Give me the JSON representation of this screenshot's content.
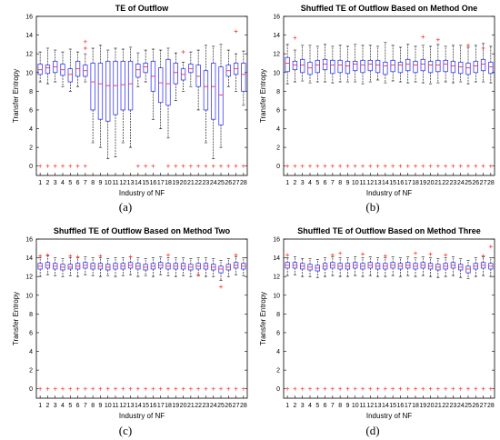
{
  "colors": {
    "box": "#3b3bff",
    "median": "#ff3030",
    "outlier": "#ff3030",
    "whisker": "#000000",
    "axis": "#000000"
  },
  "chart_data": [
    {
      "type": "boxplot",
      "title": "TE of Outflow",
      "xlabel": "Industry of NF",
      "ylabel": "Transfer Entropy",
      "ylim": [
        -1,
        16
      ],
      "yticks": [
        0,
        2,
        4,
        6,
        8,
        10,
        12,
        14,
        16
      ],
      "categories": [
        "1",
        "2",
        "3",
        "4",
        "5",
        "6",
        "7",
        "8",
        "9",
        "10",
        "11",
        "12",
        "13",
        "14",
        "15",
        "16",
        "17",
        "18",
        "19",
        "20",
        "21",
        "22",
        "23",
        "24",
        "25",
        "26",
        "27",
        "28"
      ],
      "q1": [
        9.8,
        9.9,
        10.0,
        9.7,
        9.0,
        9.6,
        9.6,
        6.0,
        5.0,
        4.8,
        5.5,
        6.0,
        6.0,
        9.5,
        10.0,
        8.0,
        6.8,
        6.5,
        8.8,
        9.2,
        10.0,
        8.5,
        6.0,
        5.0,
        4.4,
        9.6,
        9.8,
        8.0
      ],
      "median": [
        10.3,
        10.5,
        10.6,
        10.3,
        9.8,
        10.4,
        10.2,
        9.0,
        8.8,
        8.6,
        8.6,
        8.7,
        8.8,
        10.3,
        10.6,
        9.6,
        8.9,
        8.8,
        10.0,
        9.8,
        10.4,
        9.6,
        8.5,
        8.5,
        7.6,
        10.2,
        10.4,
        9.8
      ],
      "q3": [
        10.9,
        10.8,
        11.2,
        10.9,
        10.4,
        11.2,
        10.8,
        11.0,
        11.0,
        11.2,
        11.2,
        11.2,
        11.2,
        10.9,
        11.0,
        11.2,
        10.5,
        11.4,
        11.0,
        10.4,
        10.9,
        10.8,
        10.2,
        11.0,
        10.6,
        10.8,
        11.0,
        11.0
      ],
      "whisker_low": [
        9.0,
        8.8,
        9.0,
        8.5,
        8.0,
        8.5,
        9.0,
        2.5,
        2.0,
        0.8,
        1.0,
        2.5,
        2.0,
        8.5,
        9.0,
        5.0,
        4.0,
        3.0,
        7.0,
        8.0,
        8.5,
        6.0,
        2.5,
        0.8,
        2.0,
        8.5,
        8.0,
        6.5
      ],
      "whisker_high": [
        12.2,
        12.6,
        12.4,
        12.2,
        12.5,
        12.2,
        12.0,
        12.6,
        12.9,
        12.4,
        12.6,
        12.5,
        12.7,
        12.1,
        12.4,
        12.5,
        12.4,
        12.6,
        12.1,
        11.1,
        12.2,
        12.4,
        12.9,
        12.8,
        13.0,
        12.4,
        12.0,
        12.3
      ],
      "outliers": [
        [
          1,
          0
        ],
        [
          2,
          0
        ],
        [
          3,
          0
        ],
        [
          4,
          0
        ],
        [
          5,
          0
        ],
        [
          6,
          0
        ],
        [
          7,
          0
        ],
        [
          7,
          13.3
        ],
        [
          7,
          12.6
        ],
        [
          14,
          0
        ],
        [
          15,
          0
        ],
        [
          16,
          0
        ],
        [
          18,
          0
        ],
        [
          19,
          0
        ],
        [
          20,
          0
        ],
        [
          20,
          12.2
        ],
        [
          21,
          0
        ],
        [
          22,
          0
        ],
        [
          23,
          0
        ],
        [
          24,
          0
        ],
        [
          25,
          0
        ],
        [
          26,
          0
        ],
        [
          27,
          0
        ],
        [
          27,
          14.4
        ],
        [
          28,
          0
        ]
      ]
    },
    {
      "type": "boxplot",
      "title": "Shuffled TE of Outflow Based on Method One",
      "xlabel": "Industry of NF",
      "ylabel": "Transfer Entropy",
      "ylim": [
        -1,
        16
      ],
      "yticks": [
        0,
        2,
        4,
        6,
        8,
        10,
        12,
        14,
        16
      ],
      "categories": [
        "1",
        "2",
        "3",
        "4",
        "5",
        "6",
        "7",
        "8",
        "9",
        "10",
        "11",
        "12",
        "13",
        "14",
        "15",
        "16",
        "17",
        "18",
        "19",
        "20",
        "21",
        "22",
        "23",
        "24",
        "25",
        "26",
        "27",
        "28"
      ],
      "q1": [
        10.1,
        10.3,
        10.0,
        9.8,
        10.0,
        10.3,
        9.9,
        10.0,
        9.9,
        10.2,
        10.0,
        10.2,
        10.0,
        9.8,
        10.1,
        10.0,
        10.2,
        10.0,
        10.2,
        10.0,
        10.1,
        10.1,
        10.0,
        9.9,
        9.8,
        10.0,
        10.2,
        9.9
      ],
      "median": [
        11.0,
        10.8,
        10.8,
        10.5,
        10.8,
        10.9,
        10.8,
        10.8,
        10.7,
        10.9,
        10.8,
        10.9,
        10.8,
        10.7,
        10.8,
        10.8,
        10.9,
        10.8,
        10.9,
        10.8,
        10.8,
        10.9,
        10.7,
        10.6,
        10.5,
        10.7,
        10.9,
        10.6
      ],
      "q3": [
        11.6,
        11.2,
        11.4,
        11.1,
        11.3,
        11.4,
        11.3,
        11.3,
        11.2,
        11.2,
        11.3,
        11.3,
        11.3,
        11.1,
        11.3,
        11.1,
        11.4,
        11.2,
        11.4,
        11.2,
        11.3,
        11.3,
        11.2,
        11.1,
        11.0,
        11.2,
        11.4,
        11.1
      ],
      "whisker_low": [
        8.8,
        9.0,
        9.1,
        8.9,
        9.0,
        9.0,
        8.9,
        9.0,
        9.0,
        9.0,
        8.8,
        9.0,
        9.2,
        8.9,
        9.1,
        9.0,
        8.9,
        9.0,
        8.9,
        8.8,
        8.9,
        9.0,
        8.9,
        9.0,
        8.8,
        9.0,
        9.0,
        8.9
      ],
      "whisker_high": [
        13.0,
        12.4,
        12.9,
        12.9,
        12.8,
        13.0,
        12.8,
        12.9,
        12.8,
        13.0,
        12.9,
        12.9,
        12.8,
        13.2,
        12.9,
        12.7,
        13.0,
        12.8,
        12.9,
        12.8,
        13.0,
        12.8,
        12.9,
        12.9,
        12.7,
        12.9,
        13.1,
        12.8
      ],
      "outliers": [
        [
          1,
          0
        ],
        [
          2,
          0
        ],
        [
          2,
          13.7
        ],
        [
          3,
          0
        ],
        [
          4,
          0
        ],
        [
          5,
          0
        ],
        [
          6,
          0
        ],
        [
          7,
          0
        ],
        [
          8,
          0
        ],
        [
          9,
          0
        ],
        [
          10,
          0
        ],
        [
          11,
          0
        ],
        [
          12,
          0
        ],
        [
          13,
          0
        ],
        [
          14,
          0
        ],
        [
          15,
          0
        ],
        [
          16,
          0
        ],
        [
          17,
          0
        ],
        [
          18,
          0
        ],
        [
          19,
          0
        ],
        [
          19,
          13.8
        ],
        [
          20,
          0
        ],
        [
          21,
          0
        ],
        [
          21,
          13.5
        ],
        [
          22,
          0
        ],
        [
          23,
          0
        ],
        [
          24,
          0
        ],
        [
          25,
          0
        ],
        [
          25,
          12.9
        ],
        [
          26,
          0
        ],
        [
          27,
          0
        ],
        [
          27,
          12.6
        ],
        [
          28,
          0
        ]
      ]
    },
    {
      "type": "boxplot",
      "title": "Shuffled TE of Outflow Based on Method Two",
      "xlabel": "Industry of NF",
      "ylabel": "Transfer Entropy",
      "ylim": [
        -1,
        16
      ],
      "yticks": [
        0,
        2,
        4,
        6,
        8,
        10,
        12,
        14,
        16
      ],
      "categories": [
        "1",
        "2",
        "3",
        "4",
        "5",
        "6",
        "7",
        "8",
        "9",
        "10",
        "11",
        "12",
        "13",
        "14",
        "15",
        "16",
        "17",
        "18",
        "19",
        "20",
        "21",
        "22",
        "23",
        "24",
        "25",
        "26",
        "27",
        "28"
      ],
      "q1": [
        12.8,
        12.9,
        12.8,
        12.7,
        12.8,
        12.8,
        12.9,
        12.8,
        12.8,
        12.7,
        12.8,
        12.8,
        12.9,
        12.8,
        12.7,
        12.8,
        12.9,
        12.8,
        12.8,
        12.8,
        12.7,
        12.8,
        12.8,
        12.7,
        12.4,
        12.7,
        12.9,
        12.8
      ],
      "median": [
        13.1,
        13.2,
        13.1,
        13.0,
        13.0,
        13.1,
        13.2,
        13.1,
        13.1,
        13.0,
        13.1,
        13.1,
        13.2,
        13.1,
        13.0,
        13.1,
        13.2,
        13.1,
        13.1,
        13.1,
        13.0,
        13.1,
        13.1,
        13.0,
        12.8,
        13.0,
        13.2,
        13.1
      ],
      "q3": [
        13.4,
        13.5,
        13.4,
        13.3,
        13.3,
        13.4,
        13.5,
        13.4,
        13.4,
        13.3,
        13.4,
        13.4,
        13.5,
        13.4,
        13.3,
        13.4,
        13.5,
        13.4,
        13.4,
        13.4,
        13.3,
        13.4,
        13.4,
        13.3,
        13.1,
        13.3,
        13.5,
        13.4
      ],
      "whisker_low": [
        12.0,
        12.2,
        12.1,
        12.0,
        12.1,
        12.0,
        12.2,
        12.1,
        12.0,
        12.1,
        12.0,
        12.1,
        12.2,
        12.0,
        12.1,
        12.0,
        12.2,
        12.1,
        12.0,
        12.1,
        12.0,
        12.1,
        12.0,
        12.0,
        11.6,
        12.0,
        12.2,
        12.1
      ],
      "whisker_high": [
        14.0,
        14.2,
        14.0,
        13.9,
        14.0,
        14.0,
        14.1,
        14.0,
        14.0,
        13.9,
        14.0,
        14.0,
        14.1,
        14.0,
        13.9,
        14.0,
        14.1,
        14.0,
        14.0,
        14.0,
        13.9,
        14.0,
        14.0,
        13.9,
        13.7,
        13.9,
        14.1,
        14.0
      ],
      "outliers": [
        [
          1,
          0
        ],
        [
          1,
          14.2
        ],
        [
          2,
          0
        ],
        [
          2,
          14.3
        ],
        [
          3,
          0
        ],
        [
          4,
          0
        ],
        [
          5,
          0
        ],
        [
          5,
          14.2
        ],
        [
          6,
          0
        ],
        [
          6,
          14.1
        ],
        [
          7,
          0
        ],
        [
          8,
          0
        ],
        [
          9,
          0
        ],
        [
          9,
          14.2
        ],
        [
          10,
          0
        ],
        [
          11,
          0
        ],
        [
          12,
          0
        ],
        [
          13,
          0
        ],
        [
          13,
          14.1
        ],
        [
          14,
          0
        ],
        [
          15,
          0
        ],
        [
          16,
          0
        ],
        [
          17,
          0
        ],
        [
          18,
          0
        ],
        [
          18,
          14.3
        ],
        [
          19,
          0
        ],
        [
          20,
          0
        ],
        [
          21,
          0
        ],
        [
          22,
          0
        ],
        [
          22,
          12.2
        ],
        [
          23,
          0
        ],
        [
          24,
          0
        ],
        [
          25,
          0
        ],
        [
          25,
          10.9
        ],
        [
          26,
          0
        ],
        [
          27,
          0
        ],
        [
          27,
          14.3
        ],
        [
          28,
          0
        ]
      ]
    },
    {
      "type": "boxplot",
      "title": "Shuffled TE of Outflow Based on Method Three",
      "xlabel": "Industry of NF",
      "ylabel": "Transfer Entropy",
      "ylim": [
        -1,
        16
      ],
      "yticks": [
        0,
        2,
        4,
        6,
        8,
        10,
        12,
        14,
        16
      ],
      "categories": [
        "1",
        "2",
        "3",
        "4",
        "5",
        "6",
        "7",
        "8",
        "9",
        "10",
        "11",
        "12",
        "13",
        "14",
        "15",
        "16",
        "17",
        "18",
        "19",
        "20",
        "21",
        "22",
        "23",
        "24",
        "25",
        "26",
        "27",
        "28"
      ],
      "q1": [
        12.9,
        12.9,
        12.8,
        12.7,
        12.6,
        12.8,
        12.9,
        12.8,
        12.8,
        12.9,
        12.8,
        12.9,
        12.8,
        12.8,
        12.9,
        12.8,
        12.9,
        12.8,
        12.9,
        12.8,
        12.7,
        12.8,
        12.9,
        12.7,
        12.4,
        12.8,
        12.9,
        12.8
      ],
      "median": [
        13.2,
        13.2,
        13.1,
        13.0,
        12.9,
        13.1,
        13.2,
        13.1,
        13.1,
        13.2,
        13.1,
        13.2,
        13.1,
        13.1,
        13.2,
        13.1,
        13.2,
        13.1,
        13.2,
        13.1,
        13.0,
        13.1,
        13.2,
        13.0,
        12.8,
        13.1,
        13.2,
        13.1
      ],
      "q3": [
        13.5,
        13.5,
        13.4,
        13.3,
        13.2,
        13.4,
        13.5,
        13.4,
        13.4,
        13.5,
        13.4,
        13.5,
        13.4,
        13.4,
        13.5,
        13.4,
        13.5,
        13.4,
        13.5,
        13.4,
        13.3,
        13.4,
        13.5,
        13.3,
        13.1,
        13.4,
        13.5,
        13.4
      ],
      "whisker_low": [
        12.1,
        12.2,
        12.0,
        12.0,
        11.9,
        12.0,
        12.1,
        12.0,
        12.0,
        12.1,
        12.0,
        12.1,
        12.0,
        12.0,
        12.1,
        12.0,
        12.1,
        12.0,
        12.1,
        12.0,
        11.9,
        12.0,
        12.1,
        11.9,
        11.8,
        12.0,
        12.1,
        12.0
      ],
      "whisker_high": [
        14.0,
        14.1,
        13.9,
        13.9,
        13.8,
        14.0,
        14.1,
        14.0,
        14.0,
        14.1,
        14.0,
        14.1,
        14.0,
        14.0,
        14.1,
        14.0,
        14.1,
        14.0,
        14.1,
        14.0,
        13.9,
        14.0,
        14.1,
        13.9,
        13.7,
        14.0,
        14.1,
        14.0
      ],
      "outliers": [
        [
          1,
          0
        ],
        [
          1,
          14.3
        ],
        [
          2,
          0
        ],
        [
          3,
          0
        ],
        [
          4,
          0
        ],
        [
          5,
          0
        ],
        [
          6,
          0
        ],
        [
          7,
          0
        ],
        [
          7,
          14.3
        ],
        [
          8,
          0
        ],
        [
          8,
          14.5
        ],
        [
          9,
          0
        ],
        [
          10,
          0
        ],
        [
          11,
          0
        ],
        [
          11,
          14.4
        ],
        [
          12,
          0
        ],
        [
          13,
          0
        ],
        [
          14,
          0
        ],
        [
          14,
          14.2
        ],
        [
          15,
          0
        ],
        [
          16,
          0
        ],
        [
          17,
          0
        ],
        [
          18,
          0
        ],
        [
          18,
          14.5
        ],
        [
          19,
          0
        ],
        [
          20,
          0
        ],
        [
          20,
          14.4
        ],
        [
          21,
          0
        ],
        [
          22,
          0
        ],
        [
          22,
          14.3
        ],
        [
          23,
          0
        ],
        [
          24,
          0
        ],
        [
          25,
          0
        ],
        [
          26,
          0
        ],
        [
          27,
          0
        ],
        [
          27,
          14.2
        ],
        [
          28,
          0
        ],
        [
          28,
          15.2
        ]
      ]
    }
  ],
  "subfigure_labels": [
    "(a)",
    "(b)",
    "(c)",
    "(d)"
  ]
}
